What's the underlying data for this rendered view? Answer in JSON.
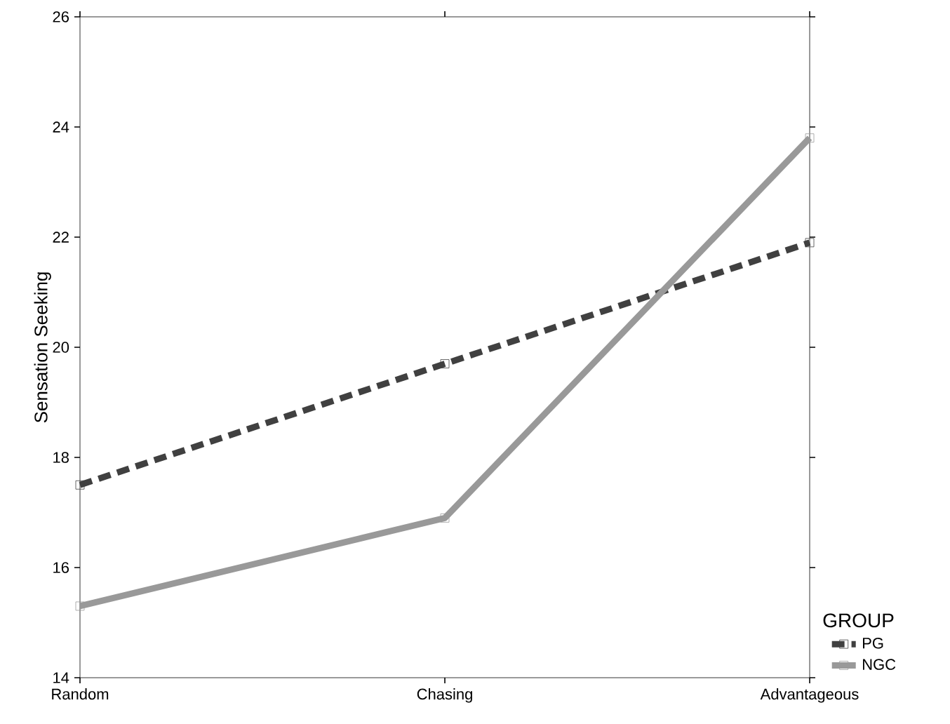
{
  "chart_data": {
    "type": "line",
    "ylabel": "Sensation Seeking",
    "legend_title": "GROUP",
    "categories": [
      "Random",
      "Chasing",
      "Advantageous"
    ],
    "series": [
      {
        "name": "PG",
        "color": "#404040",
        "line_style": "dashed",
        "values": [
          17.5,
          19.7,
          21.9
        ]
      },
      {
        "name": "NGC",
        "color": "#999999",
        "line_style": "solid",
        "values": [
          15.3,
          16.9,
          23.8
        ]
      }
    ],
    "ylim": [
      14,
      26
    ],
    "yticks": [
      14,
      16,
      18,
      20,
      22,
      24,
      26
    ],
    "grid": false,
    "legend": "right",
    "marker": "square"
  }
}
